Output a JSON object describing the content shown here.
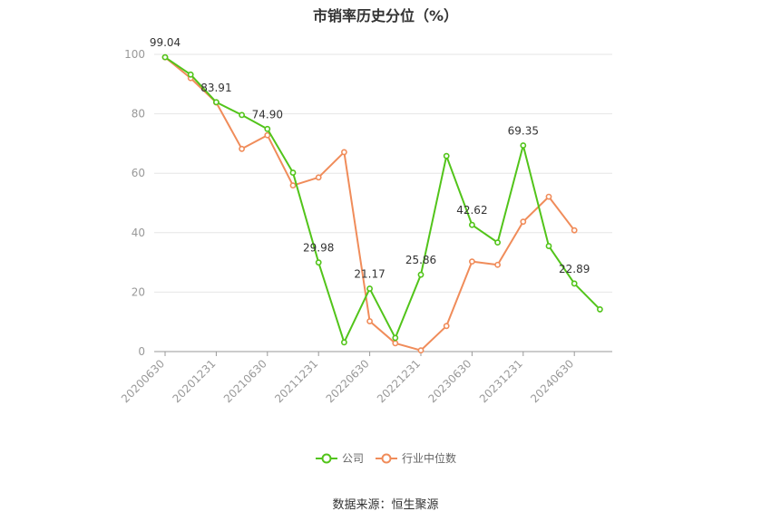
{
  "title": "市销率历史分位（%）",
  "source_text": "数据来源：恒生聚源",
  "colors": {
    "company": "#52c41a",
    "industry": "#f08c5a",
    "grid": "#e6e6e6",
    "axis": "#999999",
    "tick_text": "#999999",
    "label_text": "#333333"
  },
  "chart_data": {
    "type": "line",
    "title": "市销率历史分位（%）",
    "ylim": [
      0,
      100
    ],
    "yticks": [
      0,
      20,
      40,
      60,
      80,
      100
    ],
    "x": [
      "20200630",
      "20200930",
      "20201231",
      "20210331",
      "20210630",
      "20210930",
      "20211231",
      "20220331",
      "20220630",
      "20220930",
      "20221231",
      "20230331",
      "20230630",
      "20230930",
      "20231231",
      "20240331",
      "20240630",
      "20240930"
    ],
    "xtick_labels": [
      "20200630",
      "20201231",
      "20210630",
      "20211231",
      "20220630",
      "20221231",
      "20230630",
      "20231231",
      "20240630"
    ],
    "legend_position": "bottom",
    "grid": true,
    "series": [
      {
        "name": "公司",
        "color": "#52c41a",
        "values": [
          99.04,
          93.2,
          83.91,
          79.6,
          74.9,
          60.2,
          29.98,
          3.1,
          21.17,
          4.6,
          25.86,
          65.8,
          42.62,
          36.7,
          69.35,
          35.5,
          22.89,
          14.2
        ]
      },
      {
        "name": "行业中位数",
        "color": "#f08c5a",
        "values": [
          99.0,
          92.0,
          83.8,
          68.2,
          72.8,
          55.9,
          58.6,
          67.1,
          10.2,
          2.8,
          0.4,
          8.6,
          30.3,
          29.2,
          43.7,
          52.1,
          40.8,
          null
        ]
      }
    ],
    "data_labels": [
      {
        "index": 0,
        "text": "99.04"
      },
      {
        "index": 2,
        "text": "83.91"
      },
      {
        "index": 4,
        "text": "74.90"
      },
      {
        "index": 6,
        "text": "29.98"
      },
      {
        "index": 8,
        "text": "21.17"
      },
      {
        "index": 10,
        "text": "25.86"
      },
      {
        "index": 12,
        "text": "42.62"
      },
      {
        "index": 14,
        "text": "69.35"
      },
      {
        "index": 16,
        "text": "22.89"
      }
    ]
  }
}
